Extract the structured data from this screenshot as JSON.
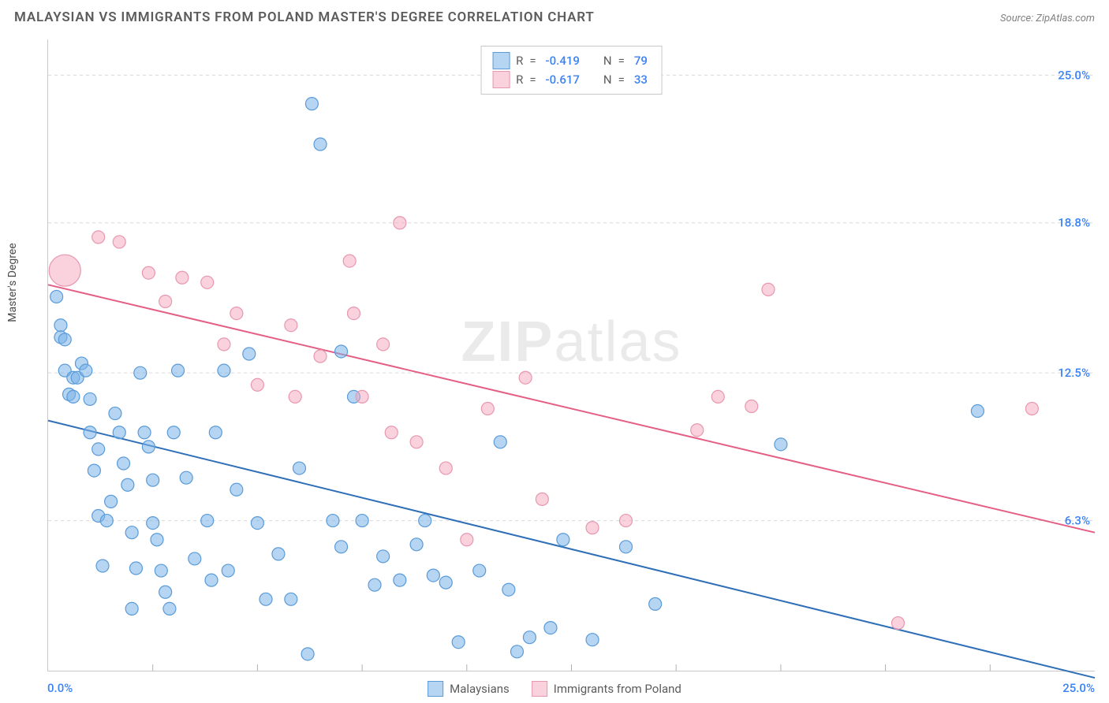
{
  "header": {
    "title": "MALAYSIAN VS IMMIGRANTS FROM POLAND MASTER'S DEGREE CORRELATION CHART",
    "source": "Source: ZipAtlas.com"
  },
  "chart": {
    "type": "scatter",
    "ylabel": "Master's Degree",
    "watermark": {
      "zip": "ZIP",
      "atlas": "atlas"
    },
    "xlim": [
      0,
      25
    ],
    "ylim": [
      0,
      26.5
    ],
    "x_axis_labels": {
      "min": "0.0%",
      "max": "25.0%"
    },
    "y_ticks": [
      {
        "v": 25.0,
        "label": "25.0%"
      },
      {
        "v": 18.8,
        "label": "18.8%"
      },
      {
        "v": 12.5,
        "label": "12.5%"
      },
      {
        "v": 6.3,
        "label": "6.3%"
      }
    ],
    "x_ticks_minor": [
      2.5,
      5,
      7.5,
      10,
      12.5,
      15,
      17.5,
      20,
      22.5
    ],
    "grid_color": "#d9d9d9",
    "grid_dash": "4 4",
    "background_color": "#ffffff",
    "series": {
      "blue": {
        "label": "Malaysians",
        "marker_color_fill": "rgba(122,178,232,0.55)",
        "marker_color_stroke": "#5a9bd8",
        "line_color": "#2f6fb7",
        "line_width": 2,
        "marker_r": 8,
        "R": "-0.419",
        "N": "79",
        "trend": {
          "x1": 0,
          "y1": 10.5,
          "x2": 25,
          "y2": -0.3
        },
        "points": [
          {
            "x": 0.2,
            "y": 15.7
          },
          {
            "x": 0.3,
            "y": 14.5
          },
          {
            "x": 0.3,
            "y": 14.0
          },
          {
            "x": 0.4,
            "y": 13.9
          },
          {
            "x": 0.4,
            "y": 12.6
          },
          {
            "x": 0.5,
            "y": 11.6
          },
          {
            "x": 0.6,
            "y": 11.5
          },
          {
            "x": 0.6,
            "y": 12.3
          },
          {
            "x": 0.7,
            "y": 12.3
          },
          {
            "x": 0.8,
            "y": 12.9
          },
          {
            "x": 0.9,
            "y": 12.6
          },
          {
            "x": 1.0,
            "y": 11.4
          },
          {
            "x": 1.0,
            "y": 10.0
          },
          {
            "x": 1.1,
            "y": 8.4
          },
          {
            "x": 1.2,
            "y": 9.3
          },
          {
            "x": 1.2,
            "y": 6.5
          },
          {
            "x": 1.3,
            "y": 4.4
          },
          {
            "x": 1.4,
            "y": 6.3
          },
          {
            "x": 1.5,
            "y": 7.1
          },
          {
            "x": 1.6,
            "y": 10.8
          },
          {
            "x": 1.7,
            "y": 10.0
          },
          {
            "x": 1.8,
            "y": 8.7
          },
          {
            "x": 1.9,
            "y": 7.8
          },
          {
            "x": 2.0,
            "y": 5.8
          },
          {
            "x": 2.0,
            "y": 2.6
          },
          {
            "x": 2.1,
            "y": 4.3
          },
          {
            "x": 2.2,
            "y": 12.5
          },
          {
            "x": 2.3,
            "y": 10.0
          },
          {
            "x": 2.4,
            "y": 9.4
          },
          {
            "x": 2.5,
            "y": 8.0
          },
          {
            "x": 2.5,
            "y": 6.2
          },
          {
            "x": 2.6,
            "y": 5.5
          },
          {
            "x": 2.7,
            "y": 4.2
          },
          {
            "x": 2.8,
            "y": 3.3
          },
          {
            "x": 2.9,
            "y": 2.6
          },
          {
            "x": 3.0,
            "y": 10.0
          },
          {
            "x": 3.1,
            "y": 12.6
          },
          {
            "x": 3.3,
            "y": 8.1
          },
          {
            "x": 3.5,
            "y": 4.7
          },
          {
            "x": 3.8,
            "y": 6.3
          },
          {
            "x": 3.9,
            "y": 3.8
          },
          {
            "x": 4.0,
            "y": 10.0
          },
          {
            "x": 4.2,
            "y": 12.6
          },
          {
            "x": 4.3,
            "y": 4.2
          },
          {
            "x": 4.5,
            "y": 7.6
          },
          {
            "x": 4.8,
            "y": 13.3
          },
          {
            "x": 5.0,
            "y": 6.2
          },
          {
            "x": 5.2,
            "y": 3.0
          },
          {
            "x": 5.5,
            "y": 4.9
          },
          {
            "x": 5.8,
            "y": 3.0
          },
          {
            "x": 6.0,
            "y": 8.5
          },
          {
            "x": 6.2,
            "y": 0.7
          },
          {
            "x": 6.3,
            "y": 23.8
          },
          {
            "x": 6.5,
            "y": 22.1
          },
          {
            "x": 6.8,
            "y": 6.3
          },
          {
            "x": 7.0,
            "y": 13.4
          },
          {
            "x": 7.0,
            "y": 5.2
          },
          {
            "x": 7.3,
            "y": 11.5
          },
          {
            "x": 7.5,
            "y": 6.3
          },
          {
            "x": 7.8,
            "y": 3.6
          },
          {
            "x": 8.0,
            "y": 4.8
          },
          {
            "x": 8.4,
            "y": 3.8
          },
          {
            "x": 8.8,
            "y": 5.3
          },
          {
            "x": 9.0,
            "y": 6.3
          },
          {
            "x": 9.2,
            "y": 4.0
          },
          {
            "x": 9.5,
            "y": 3.7
          },
          {
            "x": 9.8,
            "y": 1.2
          },
          {
            "x": 10.3,
            "y": 4.2
          },
          {
            "x": 10.8,
            "y": 9.6
          },
          {
            "x": 11.0,
            "y": 3.4
          },
          {
            "x": 11.2,
            "y": 0.8
          },
          {
            "x": 11.5,
            "y": 1.4
          },
          {
            "x": 12.0,
            "y": 1.8
          },
          {
            "x": 12.3,
            "y": 5.5
          },
          {
            "x": 13.0,
            "y": 1.3
          },
          {
            "x": 13.8,
            "y": 5.2
          },
          {
            "x": 14.5,
            "y": 2.8
          },
          {
            "x": 17.5,
            "y": 9.5
          },
          {
            "x": 22.2,
            "y": 10.9
          }
        ]
      },
      "pink": {
        "label": "Immigrants from Poland",
        "marker_color_fill": "rgba(244,166,188,0.50)",
        "marker_color_stroke": "#e897af",
        "line_color": "#e55f85",
        "line_width": 2,
        "marker_r": 8,
        "R": "-0.617",
        "N": "33",
        "trend": {
          "x1": 0,
          "y1": 16.2,
          "x2": 25,
          "y2": 5.8
        },
        "points": [
          {
            "x": 0.4,
            "y": 16.8,
            "r": 20
          },
          {
            "x": 1.2,
            "y": 18.2
          },
          {
            "x": 1.7,
            "y": 18.0
          },
          {
            "x": 2.4,
            "y": 16.7
          },
          {
            "x": 2.8,
            "y": 15.5
          },
          {
            "x": 3.2,
            "y": 16.5
          },
          {
            "x": 3.8,
            "y": 16.3
          },
          {
            "x": 4.2,
            "y": 13.7
          },
          {
            "x": 4.5,
            "y": 15.0
          },
          {
            "x": 5.0,
            "y": 12.0
          },
          {
            "x": 5.8,
            "y": 14.5
          },
          {
            "x": 5.9,
            "y": 11.5
          },
          {
            "x": 6.5,
            "y": 13.2
          },
          {
            "x": 7.2,
            "y": 17.2
          },
          {
            "x": 7.3,
            "y": 15.0
          },
          {
            "x": 7.5,
            "y": 11.5
          },
          {
            "x": 8.0,
            "y": 13.7
          },
          {
            "x": 8.2,
            "y": 10.0
          },
          {
            "x": 8.4,
            "y": 18.8
          },
          {
            "x": 8.8,
            "y": 9.6
          },
          {
            "x": 9.5,
            "y": 8.5
          },
          {
            "x": 10.0,
            "y": 5.5
          },
          {
            "x": 10.5,
            "y": 11.0
          },
          {
            "x": 11.4,
            "y": 12.3
          },
          {
            "x": 11.8,
            "y": 7.2
          },
          {
            "x": 13.0,
            "y": 6.0
          },
          {
            "x": 13.8,
            "y": 6.3
          },
          {
            "x": 15.5,
            "y": 10.1
          },
          {
            "x": 16.0,
            "y": 11.5
          },
          {
            "x": 16.8,
            "y": 11.1
          },
          {
            "x": 17.2,
            "y": 16.0
          },
          {
            "x": 20.3,
            "y": 2.0
          },
          {
            "x": 23.5,
            "y": 11.0
          }
        ]
      }
    },
    "legend_top": {
      "stroke": "#c8c8c8",
      "label_R": "R",
      "label_N": "N",
      "equals": "="
    },
    "legend_bottom": {
      "text_color": "#5c5c5c"
    }
  }
}
